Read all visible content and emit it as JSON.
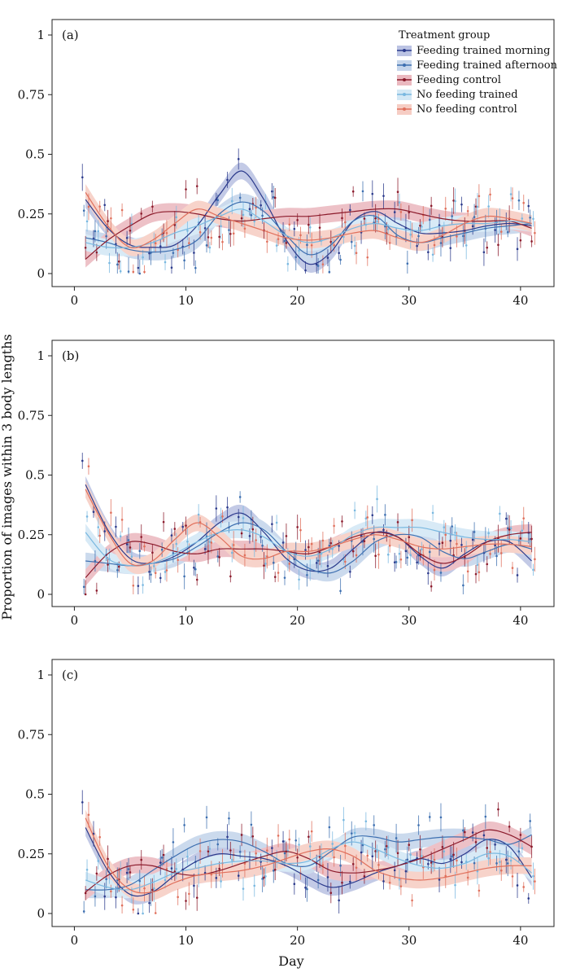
{
  "figure": {
    "ylabel": "Proportion of images within 3 body lengths",
    "xlabel": "Day",
    "legend": {
      "title": "Treatment group",
      "placement": "top-right of panel (a)"
    }
  },
  "chart_data": [
    {
      "type": "line",
      "panel_label": "(a)",
      "xlim": [
        -2,
        43
      ],
      "ylim": [
        0,
        1
      ],
      "xticks": [
        "0",
        "10",
        "20",
        "30",
        "40"
      ],
      "yticks": [
        "0",
        "0.25",
        "0.5",
        "0.75",
        "1"
      ],
      "x": [
        1,
        3,
        5,
        7,
        9,
        11,
        13,
        15,
        17,
        19,
        21,
        23,
        25,
        27,
        29,
        31,
        33,
        35,
        37,
        39,
        41
      ],
      "series": [
        {
          "name": "Feeding trained morning",
          "color": "#2b3a8c",
          "band": "#aab4dc",
          "values": [
            0.31,
            0.19,
            0.12,
            0.11,
            0.12,
            0.2,
            0.33,
            0.43,
            0.31,
            0.14,
            0.04,
            0.09,
            0.22,
            0.26,
            0.21,
            0.17,
            0.17,
            0.18,
            0.2,
            0.21,
            0.2
          ]
        },
        {
          "name": "Feeding trained afternoon",
          "color": "#3d6fb0",
          "band": "#b6cbe6",
          "values": [
            0.15,
            0.13,
            0.1,
            0.09,
            0.1,
            0.14,
            0.25,
            0.3,
            0.26,
            0.16,
            0.08,
            0.12,
            0.22,
            0.24,
            0.16,
            0.13,
            0.15,
            0.17,
            0.19,
            0.2,
            0.21
          ]
        },
        {
          "name": "Feeding control",
          "color": "#8b1a2b",
          "band": "#e6a7b0",
          "values": [
            0.06,
            0.14,
            0.2,
            0.25,
            0.26,
            0.25,
            0.23,
            0.22,
            0.23,
            0.24,
            0.24,
            0.25,
            0.26,
            0.27,
            0.27,
            0.25,
            0.23,
            0.22,
            0.22,
            0.22,
            0.19
          ]
        },
        {
          "name": "No feeding trained",
          "color": "#79b8e0",
          "band": "#c8e2f3",
          "values": [
            0.13,
            0.11,
            0.11,
            0.13,
            0.17,
            0.2,
            0.24,
            0.27,
            0.22,
            0.16,
            0.13,
            0.15,
            0.19,
            0.21,
            0.19,
            0.18,
            0.2,
            0.21,
            0.21,
            0.22,
            0.21
          ]
        },
        {
          "name": "No feeding control",
          "color": "#e0705c",
          "band": "#f4c1b5",
          "values": [
            0.34,
            0.2,
            0.11,
            0.14,
            0.21,
            0.27,
            0.24,
            0.21,
            0.18,
            0.15,
            0.14,
            0.15,
            0.17,
            0.18,
            0.15,
            0.13,
            0.16,
            0.21,
            0.24,
            0.23,
            0.21
          ]
        }
      ]
    },
    {
      "type": "line",
      "panel_label": "(b)",
      "xlim": [
        -2,
        43
      ],
      "ylim": [
        0,
        1
      ],
      "xticks": [
        "0",
        "10",
        "20",
        "30",
        "40"
      ],
      "yticks": [
        "0",
        "0.25",
        "0.5",
        "0.75",
        "1"
      ],
      "x": [
        1,
        3,
        5,
        7,
        9,
        11,
        13,
        15,
        17,
        19,
        21,
        23,
        25,
        27,
        29,
        31,
        33,
        35,
        37,
        39,
        41
      ],
      "series": [
        {
          "name": "Feeding trained morning",
          "color": "#2b3a8c",
          "band": "#aab4dc",
          "values": [
            0.46,
            0.27,
            0.15,
            0.13,
            0.16,
            0.22,
            0.3,
            0.34,
            0.26,
            0.15,
            0.1,
            0.11,
            0.19,
            0.26,
            0.24,
            0.16,
            0.11,
            0.17,
            0.22,
            0.22,
            0.14
          ]
        },
        {
          "name": "Feeding trained afternoon",
          "color": "#3d6fb0",
          "band": "#b6cbe6",
          "values": [
            0.14,
            0.13,
            0.12,
            0.13,
            0.15,
            0.2,
            0.26,
            0.3,
            0.27,
            0.18,
            0.11,
            0.09,
            0.14,
            0.22,
            0.25,
            0.24,
            0.18,
            0.15,
            0.18,
            0.21,
            0.19
          ]
        },
        {
          "name": "Feeding control",
          "color": "#8b1a2b",
          "band": "#e6a7b0",
          "values": [
            0.07,
            0.17,
            0.22,
            0.21,
            0.18,
            0.17,
            0.19,
            0.19,
            0.19,
            0.18,
            0.17,
            0.2,
            0.24,
            0.26,
            0.24,
            0.17,
            0.13,
            0.16,
            0.22,
            0.25,
            0.26
          ]
        },
        {
          "name": "No feeding trained",
          "color": "#79b8e0",
          "band": "#c8e2f3",
          "values": [
            0.26,
            0.15,
            0.12,
            0.13,
            0.17,
            0.22,
            0.26,
            0.27,
            0.24,
            0.18,
            0.16,
            0.19,
            0.25,
            0.28,
            0.28,
            0.28,
            0.26,
            0.24,
            0.23,
            0.23,
            0.22
          ]
        },
        {
          "name": "No feeding control",
          "color": "#e0705c",
          "band": "#f4c1b5",
          "values": [
            0.44,
            0.26,
            0.13,
            0.14,
            0.23,
            0.3,
            0.24,
            0.16,
            0.15,
            0.18,
            0.18,
            0.2,
            0.23,
            0.25,
            0.23,
            0.2,
            0.19,
            0.2,
            0.21,
            0.21,
            0.2
          ]
        }
      ]
    },
    {
      "type": "line",
      "panel_label": "(c)",
      "xlim": [
        -2,
        43
      ],
      "ylim": [
        0,
        1
      ],
      "xticks": [
        "0",
        "10",
        "20",
        "30",
        "40"
      ],
      "yticks": [
        "0",
        "0.25",
        "0.5",
        "0.75",
        "1"
      ],
      "x": [
        1,
        3,
        5,
        7,
        9,
        11,
        13,
        15,
        17,
        19,
        21,
        23,
        25,
        27,
        29,
        31,
        33,
        35,
        37,
        39,
        41
      ],
      "series": [
        {
          "name": "Feeding trained morning",
          "color": "#2b3a8c",
          "band": "#aab4dc",
          "values": [
            0.36,
            0.18,
            0.08,
            0.09,
            0.16,
            0.22,
            0.25,
            0.24,
            0.23,
            0.2,
            0.15,
            0.11,
            0.13,
            0.17,
            0.2,
            0.23,
            0.21,
            0.25,
            0.31,
            0.28,
            0.15
          ]
        },
        {
          "name": "Feeding trained afternoon",
          "color": "#3d6fb0",
          "band": "#b6cbe6",
          "values": [
            0.1,
            0.1,
            0.12,
            0.18,
            0.24,
            0.29,
            0.31,
            0.3,
            0.26,
            0.21,
            0.2,
            0.26,
            0.32,
            0.32,
            0.3,
            0.31,
            0.32,
            0.32,
            0.31,
            0.29,
            0.33
          ]
        },
        {
          "name": "Feeding control",
          "color": "#8b1a2b",
          "band": "#e6a7b0",
          "values": [
            0.09,
            0.16,
            0.2,
            0.2,
            0.17,
            0.16,
            0.18,
            0.21,
            0.24,
            0.26,
            0.23,
            0.18,
            0.17,
            0.18,
            0.2,
            0.23,
            0.27,
            0.31,
            0.35,
            0.33,
            0.28
          ]
        },
        {
          "name": "No feeding trained",
          "color": "#79b8e0",
          "band": "#c8e2f3",
          "values": [
            0.14,
            0.11,
            0.1,
            0.13,
            0.17,
            0.19,
            0.21,
            0.22,
            0.22,
            0.21,
            0.22,
            0.27,
            0.3,
            0.27,
            0.23,
            0.2,
            0.19,
            0.21,
            0.25,
            0.24,
            0.17
          ]
        },
        {
          "name": "No feeding control",
          "color": "#e0705c",
          "band": "#f4c1b5",
          "values": [
            0.4,
            0.2,
            0.1,
            0.09,
            0.13,
            0.16,
            0.17,
            0.18,
            0.2,
            0.23,
            0.26,
            0.27,
            0.24,
            0.18,
            0.15,
            0.14,
            0.15,
            0.17,
            0.19,
            0.2,
            0.2
          ]
        }
      ]
    }
  ]
}
